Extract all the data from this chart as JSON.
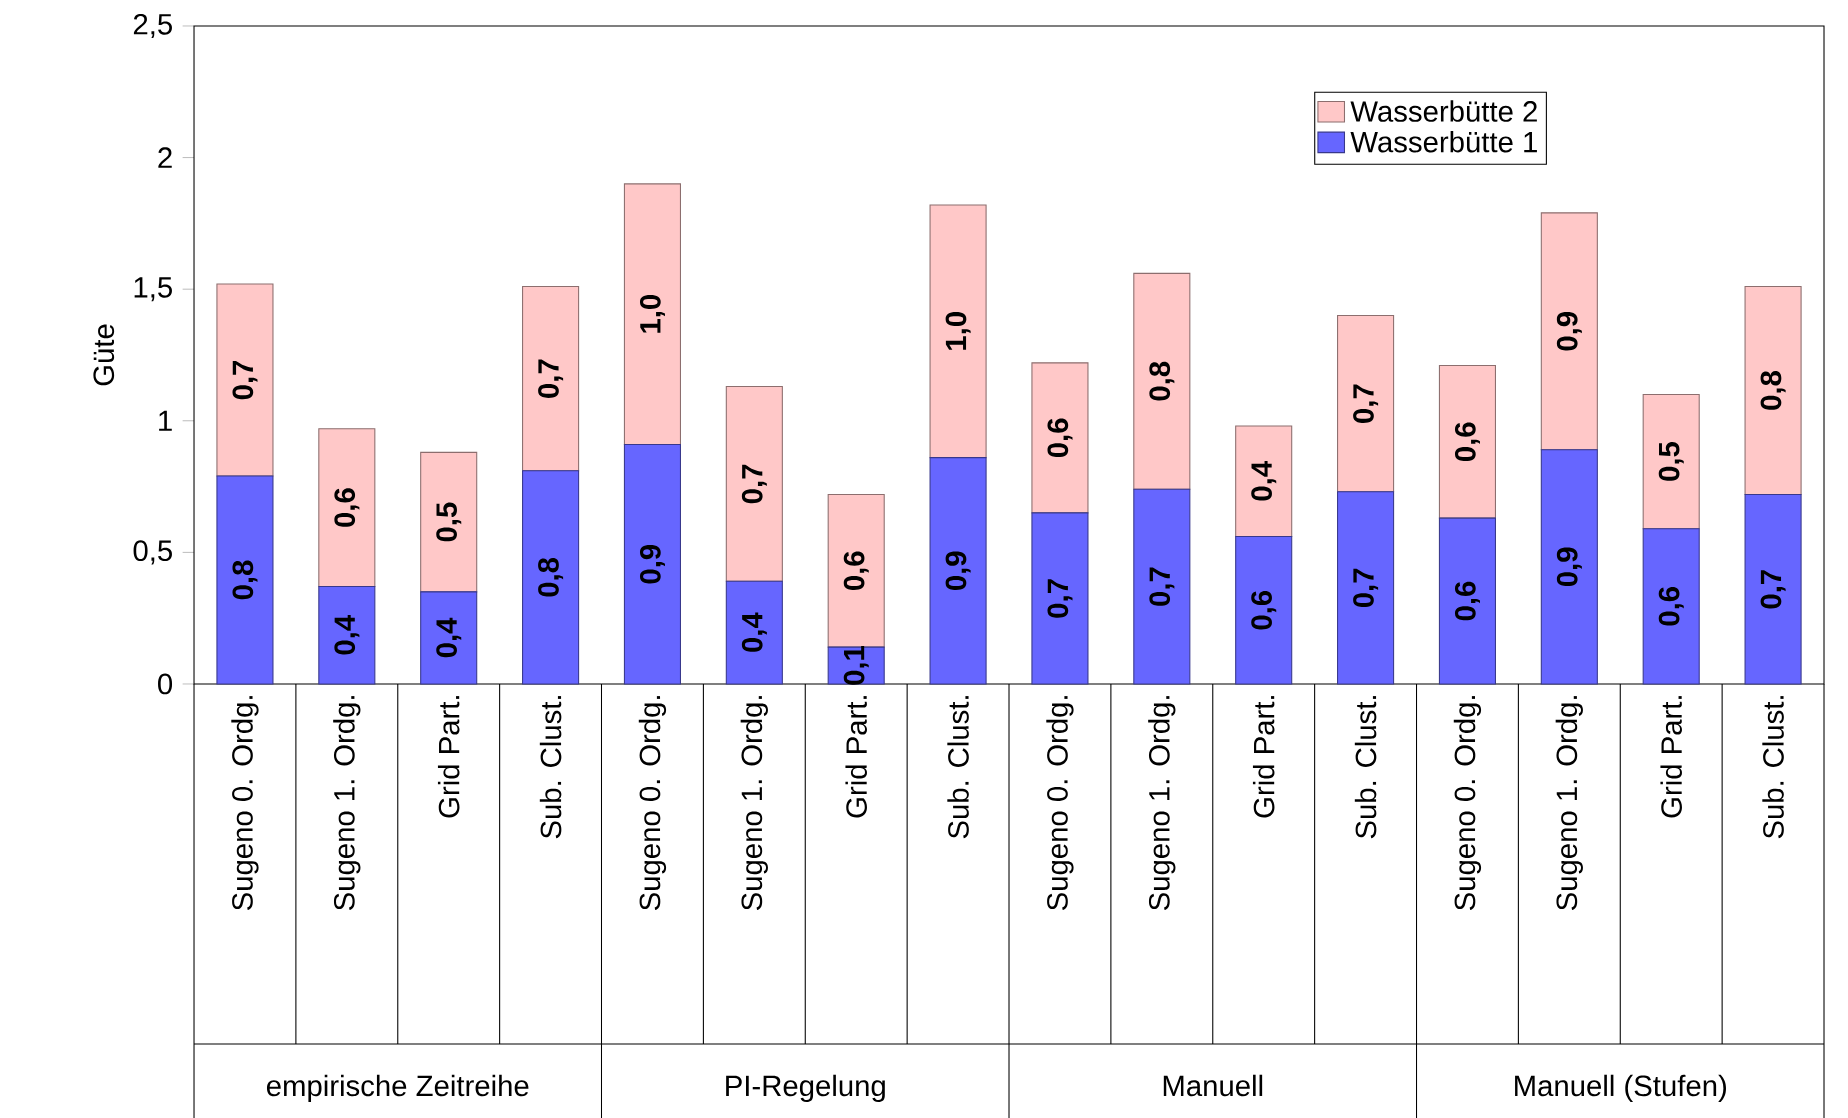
{
  "chart_data": {
    "type": "bar",
    "stacked": true,
    "ylabel": "Güte",
    "categories": [
      "Sugeno 0. Ordg.",
      "Sugeno 1. Ordg.",
      "Grid Part.",
      "Sub. Clust.",
      "Sugeno 0. Ordg.",
      "Sugeno 1. Ordg.",
      "Grid Part.",
      "Sub. Clust.",
      "Sugeno 0. Ordg.",
      "Sugeno 1. Ordg.",
      "Grid Part.",
      "Sub. Clust.",
      "Sugeno 0. Ordg.",
      "Sugeno 1. Ordg.",
      "Grid Part.",
      "Sub. Clust."
    ],
    "series": [
      {
        "name": "Wasserbütte 1",
        "color": "#6666ff",
        "values": [
          0.79,
          0.37,
          0.35,
          0.81,
          0.91,
          0.39,
          0.14,
          0.86,
          0.65,
          0.74,
          0.56,
          0.73,
          0.63,
          0.89,
          0.59,
          0.72
        ],
        "value_labels": [
          "0,8",
          "0,4",
          "0,4",
          "0,8",
          "0,9",
          "0,4",
          "0,1",
          "0,9",
          "0,7",
          "0,7",
          "0,6",
          "0,7",
          "0,6",
          "0,9",
          "0,6",
          "0,7"
        ]
      },
      {
        "name": "Wasserbütte 2",
        "color": "#ffc8c8",
        "values": [
          0.73,
          0.6,
          0.53,
          0.7,
          0.99,
          0.74,
          0.58,
          0.96,
          0.57,
          0.82,
          0.42,
          0.67,
          0.58,
          0.9,
          0.51,
          0.79
        ],
        "value_labels": [
          "0,7",
          "0,6",
          "0,5",
          "0,7",
          "1,0",
          "0,7",
          "0,6",
          "1,0",
          "0,6",
          "0,8",
          "0,4",
          "0,7",
          "0,6",
          "0,9",
          "0,5",
          "0,8"
        ]
      }
    ],
    "annotations": [
      "empirische Zeitreihe",
      "PI-Regelung",
      "Manuell",
      "Manuell (Stufen)"
    ],
    "ylim": [
      0,
      2.5
    ],
    "yticks": [
      0,
      {
        "value": 0.5,
        "label": "0,5"
      },
      1,
      {
        "value": 1.5,
        "label": "1,5"
      },
      2,
      {
        "value": 2.5,
        "label": "2,5"
      }
    ],
    "legend": "top right"
  }
}
